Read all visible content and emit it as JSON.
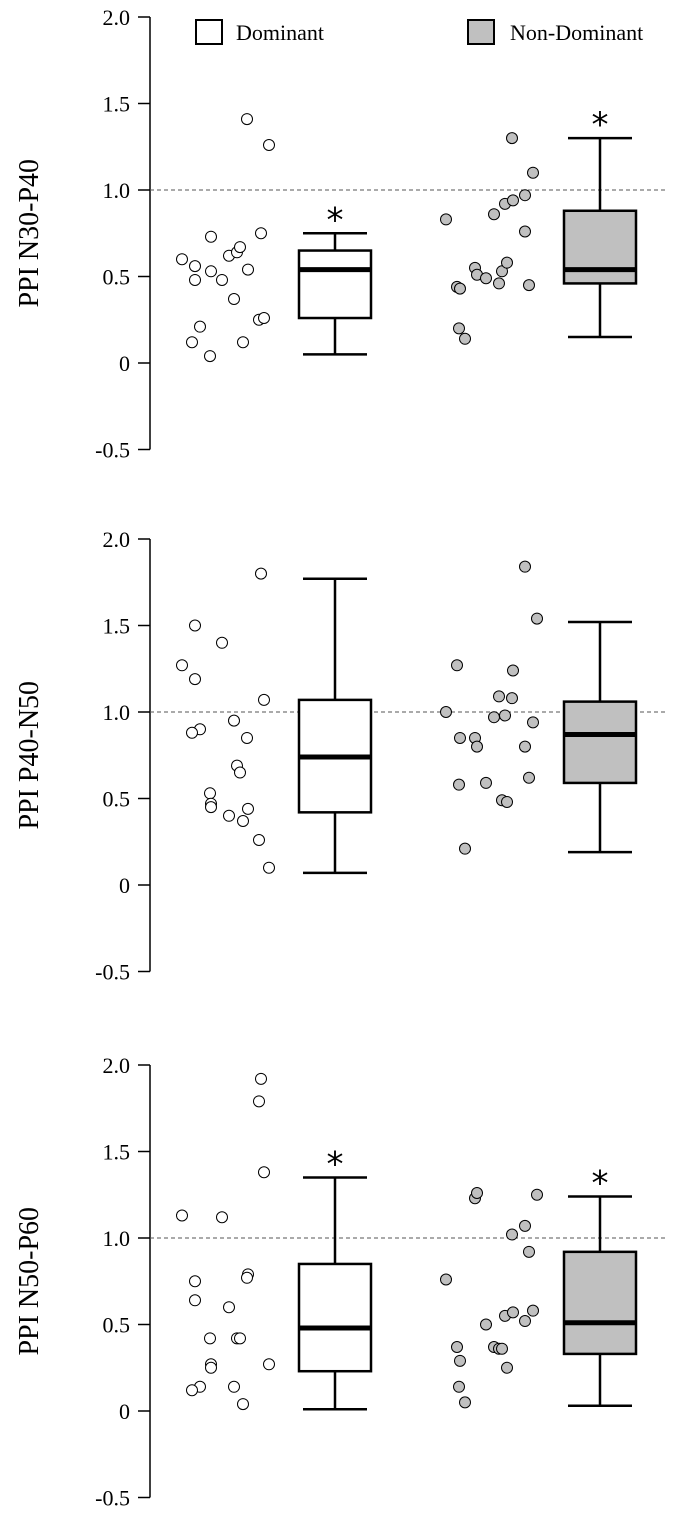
{
  "legend": {
    "dominant_label": "Dominant",
    "nondominant_label": "Non-Dominant"
  },
  "colors": {
    "dominant_fill": "#ffffff",
    "nondominant_fill": "#c0c0c0",
    "stroke": "#000000",
    "reference_line": "#555555"
  },
  "chart_data": [
    {
      "type": "box",
      "ylabel": "PPI N30-P40",
      "ylim": [
        -0.5,
        2.0
      ],
      "yticks": [
        "2.0",
        "1.5",
        "1.0",
        "0.5",
        "0",
        "-0.5"
      ],
      "reference_line": 1.0,
      "series": [
        {
          "name": "Dominant",
          "points": [
            0.6,
            0.56,
            0.48,
            0.21,
            0.12,
            0.04,
            0.73,
            0.53,
            0.48,
            0.62,
            0.64,
            0.67,
            0.37,
            0.12,
            0.54,
            0.75,
            0.25,
            0.26,
            1.41,
            1.26
          ],
          "box": {
            "min": 0.05,
            "q1": 0.26,
            "median": 0.54,
            "q3": 0.65,
            "max": 0.75
          },
          "significance": "*"
        },
        {
          "name": "Non-Dominant",
          "points": [
            0.83,
            0.44,
            0.43,
            0.2,
            0.14,
            0.55,
            0.51,
            0.49,
            0.86,
            0.92,
            0.94,
            0.46,
            0.53,
            0.58,
            0.97,
            0.76,
            1.3,
            0.45,
            1.1
          ],
          "box": {
            "min": 0.15,
            "q1": 0.46,
            "median": 0.54,
            "q3": 0.88,
            "max": 1.3
          },
          "significance": "*"
        }
      ]
    },
    {
      "type": "box",
      "ylabel": "PPI P40-N50",
      "ylim": [
        -0.5,
        2.0
      ],
      "yticks": [
        "2.0",
        "1.5",
        "1.0",
        "0.5",
        "0",
        "-0.5"
      ],
      "reference_line": 1.0,
      "series": [
        {
          "name": "Dominant",
          "points": [
            1.27,
            1.19,
            1.5,
            0.9,
            0.88,
            0.53,
            0.47,
            0.45,
            1.4,
            0.4,
            0.69,
            0.65,
            0.95,
            0.37,
            0.44,
            1.8,
            0.26,
            1.07,
            0.85,
            0.1
          ],
          "box": {
            "min": 0.07,
            "q1": 0.42,
            "median": 0.74,
            "q3": 1.07,
            "max": 1.77
          },
          "significance": ""
        },
        {
          "name": "Non-Dominant",
          "points": [
            1.0,
            1.27,
            0.85,
            0.58,
            0.21,
            0.85,
            0.8,
            0.59,
            0.97,
            0.98,
            1.24,
            1.09,
            0.49,
            0.48,
            0.8,
            1.84,
            1.08,
            0.62,
            0.94,
            1.54
          ],
          "box": {
            "min": 0.19,
            "q1": 0.59,
            "median": 0.87,
            "q3": 1.06,
            "max": 1.52
          },
          "significance": ""
        }
      ]
    },
    {
      "type": "box",
      "ylabel": "PPI N50-P60",
      "ylim": [
        -0.5,
        2.0
      ],
      "yticks": [
        "2.0",
        "1.5",
        "1.0",
        "0.5",
        "0",
        "-0.5"
      ],
      "reference_line": 1.0,
      "series": [
        {
          "name": "Dominant",
          "points": [
            1.13,
            0.64,
            0.75,
            0.14,
            0.12,
            0.42,
            0.27,
            0.25,
            1.12,
            0.6,
            0.42,
            0.42,
            0.14,
            0.04,
            0.79,
            1.92,
            1.79,
            1.38,
            0.77,
            0.27
          ],
          "box": {
            "min": 0.01,
            "q1": 0.23,
            "median": 0.48,
            "q3": 0.85,
            "max": 1.35
          },
          "significance": "*"
        },
        {
          "name": "Non-Dominant",
          "points": [
            0.76,
            0.37,
            0.29,
            0.14,
            0.05,
            1.23,
            1.26,
            0.5,
            0.37,
            0.55,
            0.57,
            0.36,
            0.36,
            0.25,
            0.52,
            1.07,
            1.02,
            0.92,
            0.58,
            1.25
          ],
          "box": {
            "min": 0.03,
            "q1": 0.33,
            "median": 0.51,
            "q3": 0.92,
            "max": 1.24
          },
          "significance": "*"
        }
      ]
    }
  ]
}
